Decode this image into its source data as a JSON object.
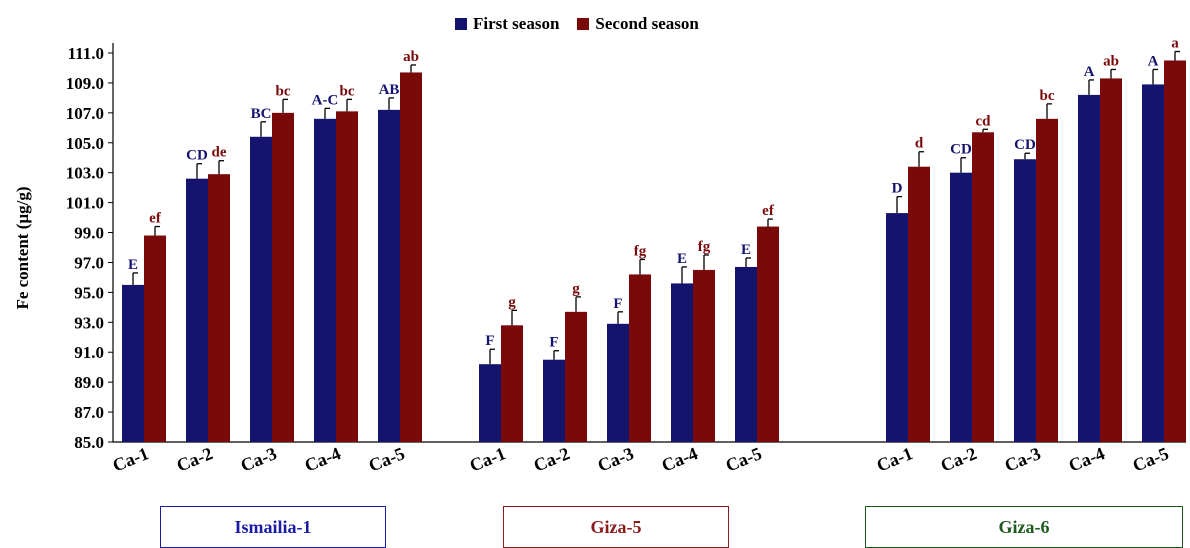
{
  "chart_data": {
    "type": "bar",
    "title": "",
    "xlabel": "",
    "ylabel": "Fe content (µg/g)",
    "ylim": [
      85.0,
      111.0
    ],
    "yticks": [
      "85.0",
      "87.0",
      "89.0",
      "91.0",
      "93.0",
      "95.0",
      "97.0",
      "99.0",
      "101.0",
      "103.0",
      "105.0",
      "107.0",
      "109.0",
      "111.0"
    ],
    "grid": false,
    "legend_position": "top-center",
    "colors": {
      "first": "#14146e",
      "second": "#7a0a0a",
      "error": "#000000"
    },
    "groups": [
      {
        "name": "Ismailia-1",
        "box_color": "#1a1aa6",
        "categories": [
          "Ca-1",
          "Ca-2",
          "Ca-3",
          "Ca-4",
          "Ca-5"
        ],
        "series": [
          {
            "name": "First season",
            "values": [
              95.5,
              102.6,
              105.4,
              106.6,
              107.2
            ],
            "errors": [
              0.8,
              1.0,
              1.0,
              0.7,
              0.8
            ],
            "labels": [
              "E",
              "CD",
              "BC",
              "A-C",
              "AB"
            ]
          },
          {
            "name": "Second season",
            "values": [
              98.8,
              102.9,
              107.0,
              107.1,
              109.7
            ],
            "errors": [
              0.6,
              0.9,
              0.9,
              0.8,
              0.5
            ],
            "labels": [
              "ef",
              "de",
              "bc",
              "bc",
              "ab"
            ]
          }
        ]
      },
      {
        "name": "Giza-5",
        "box_color": "#8b1a1a",
        "categories": [
          "Ca-1",
          "Ca-2",
          "Ca-3",
          "Ca-4",
          "Ca-5"
        ],
        "series": [
          {
            "name": "First season",
            "values": [
              90.2,
              90.5,
              92.9,
              95.6,
              96.7
            ],
            "errors": [
              1.0,
              0.6,
              0.8,
              1.1,
              0.6
            ],
            "labels": [
              "F",
              "F",
              "F",
              "E",
              "E"
            ]
          },
          {
            "name": "Second season",
            "values": [
              92.8,
              93.7,
              96.2,
              96.5,
              99.4
            ],
            "errors": [
              1.0,
              1.0,
              1.0,
              1.0,
              0.5
            ],
            "labels": [
              "g",
              "g",
              "fg",
              "fg",
              "ef"
            ]
          }
        ]
      },
      {
        "name": "Giza-6",
        "box_color": "#1e5a1e",
        "categories": [
          "Ca-1",
          "Ca-2",
          "Ca-3",
          "Ca-4",
          "Ca-5"
        ],
        "series": [
          {
            "name": "First season",
            "values": [
              100.3,
              103.0,
              103.9,
              108.2,
              108.9
            ],
            "errors": [
              1.1,
              1.0,
              0.4,
              1.0,
              1.0
            ],
            "labels": [
              "D",
              "CD",
              "CD",
              "A",
              "A"
            ]
          },
          {
            "name": "Second season",
            "values": [
              103.4,
              105.7,
              106.6,
              109.3,
              110.5
            ],
            "errors": [
              1.0,
              0.2,
              1.0,
              0.6,
              0.6
            ],
            "labels": [
              "d",
              "cd",
              "bc",
              "ab",
              "a"
            ]
          }
        ]
      }
    ]
  }
}
